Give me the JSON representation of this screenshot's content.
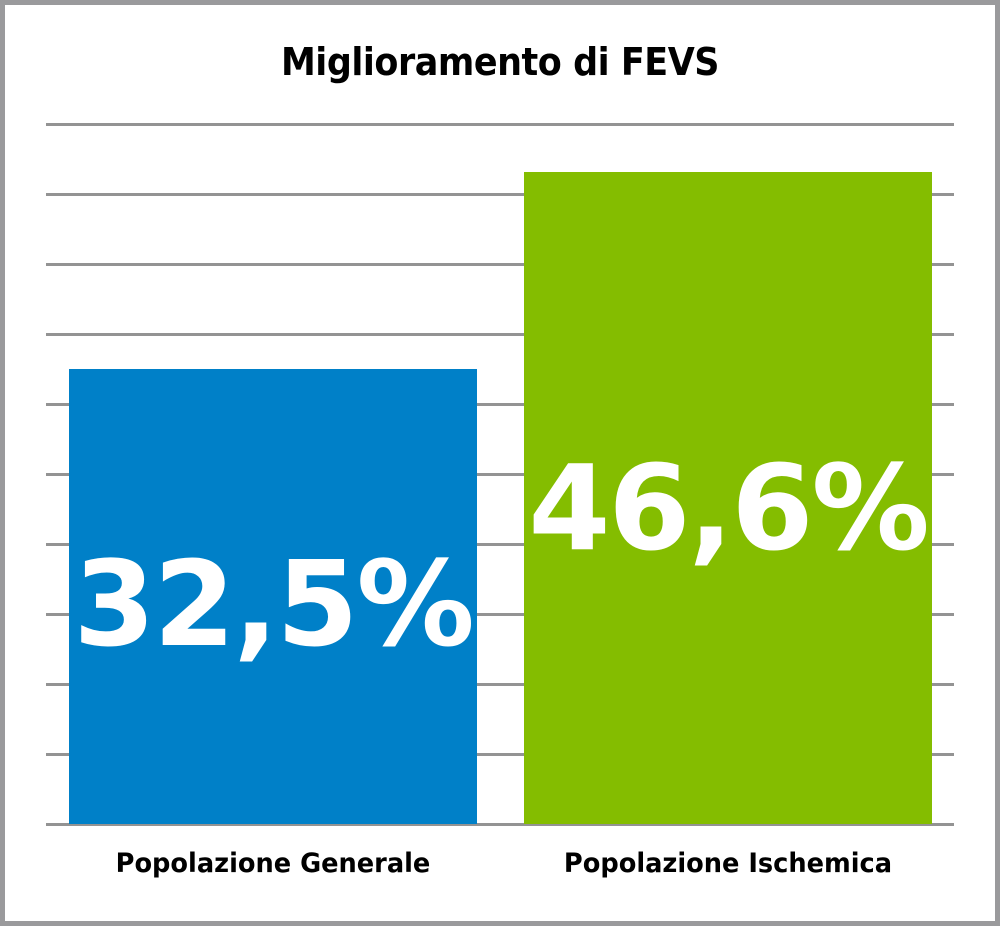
{
  "chart_data": {
    "type": "bar",
    "title": "Miglioramento di FEVS",
    "categories": [
      "Popolazione Generale",
      "Popolazione Ischemica"
    ],
    "values": [
      32.5,
      46.6
    ],
    "value_labels": [
      "32,5%",
      "46,6%"
    ],
    "colors": [
      "#0080c8",
      "#84bd00"
    ],
    "xlabel": "",
    "ylabel": "",
    "ylim": [
      0,
      50
    ],
    "gridlines": [
      0,
      5,
      10,
      15,
      20,
      25,
      30,
      35,
      40,
      45,
      50
    ],
    "grid": true,
    "y_tick_labels_shown": false,
    "legend": "none"
  },
  "bars": [
    {
      "label": "Popolazione Generale",
      "value_text": "32,5%",
      "color": "#0080c8"
    },
    {
      "label": "Popolazione Ischemica",
      "value_text": "46,6%",
      "color": "#84bd00"
    }
  ]
}
